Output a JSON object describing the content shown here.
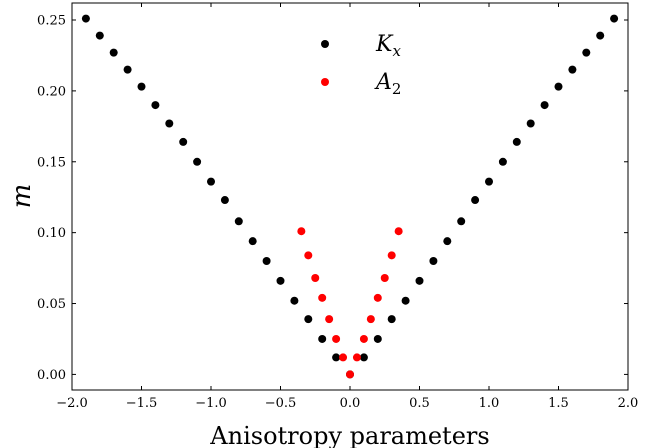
{
  "chart_data": {
    "type": "scatter",
    "xlabel": "Anisotropy parameters",
    "ylabel": "m",
    "xlim": [
      -2.0,
      2.0
    ],
    "ylim": [
      -0.011,
      0.262
    ],
    "x_ticks": [
      -2.0,
      -1.5,
      -1.0,
      -0.5,
      0.0,
      0.5,
      1.0,
      1.5,
      2.0
    ],
    "x_tick_labels": [
      "−2.0",
      "−1.5",
      "−1.0",
      "−0.5",
      "0.0",
      "0.5",
      "1.0",
      "1.5",
      "2.0"
    ],
    "y_ticks": [
      0.0,
      0.05,
      0.1,
      0.15,
      0.2,
      0.25
    ],
    "y_tick_labels": [
      "0.00",
      "0.05",
      "0.10",
      "0.15",
      "0.20",
      "0.25"
    ],
    "grid": false,
    "legend_position": "top-center",
    "series": [
      {
        "name": "K_x",
        "label_main": "K",
        "label_sub": "x",
        "color": "#000000",
        "x": [
          -1.9,
          -1.8,
          -1.7,
          -1.6,
          -1.5,
          -1.4,
          -1.3,
          -1.2,
          -1.1,
          -1.0,
          -0.9,
          -0.8,
          -0.7,
          -0.6,
          -0.5,
          -0.4,
          -0.3,
          -0.2,
          -0.1,
          0.0,
          0.1,
          0.2,
          0.3,
          0.4,
          0.5,
          0.6,
          0.7,
          0.8,
          0.9,
          1.0,
          1.1,
          1.2,
          1.3,
          1.4,
          1.5,
          1.6,
          1.7,
          1.8,
          1.9
        ],
        "y": [
          0.251,
          0.239,
          0.227,
          0.215,
          0.203,
          0.19,
          0.177,
          0.164,
          0.15,
          0.136,
          0.123,
          0.108,
          0.094,
          0.08,
          0.066,
          0.052,
          0.039,
          0.025,
          0.012,
          0.0,
          0.012,
          0.025,
          0.039,
          0.052,
          0.066,
          0.08,
          0.094,
          0.108,
          0.123,
          0.136,
          0.15,
          0.164,
          0.177,
          0.19,
          0.203,
          0.215,
          0.227,
          0.239,
          0.251
        ]
      },
      {
        "name": "A_2",
        "label_main": "A",
        "label_sub": "2",
        "color": "#ff0000",
        "x": [
          -0.35,
          -0.3,
          -0.25,
          -0.2,
          -0.15,
          -0.1,
          -0.05,
          0.0,
          0.05,
          0.1,
          0.15,
          0.2,
          0.25,
          0.3,
          0.35
        ],
        "y": [
          0.101,
          0.084,
          0.068,
          0.054,
          0.039,
          0.025,
          0.012,
          0.0,
          0.012,
          0.025,
          0.039,
          0.054,
          0.068,
          0.084,
          0.101
        ]
      }
    ]
  }
}
